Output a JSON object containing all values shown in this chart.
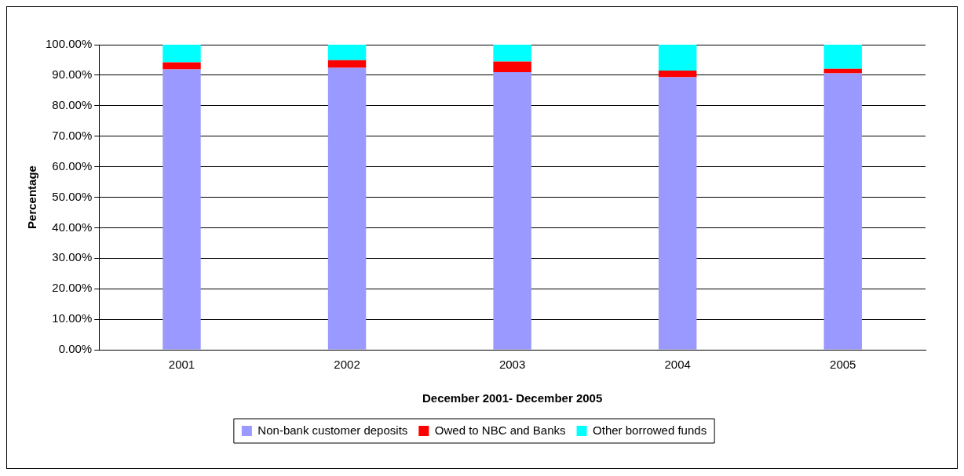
{
  "chart_data": {
    "type": "bar",
    "stacked": true,
    "xlabel": "December 2001- December 2005",
    "ylabel": "Percentage",
    "categories": [
      "2001",
      "2002",
      "2003",
      "2004",
      "2005"
    ],
    "series": [
      {
        "name": "Non-bank customer deposits",
        "color": "#9999ff",
        "values": [
          91.9,
          92.4,
          91.0,
          89.3,
          90.6
        ]
      },
      {
        "name": "Owed to NBC and Banks",
        "color": "#ff0000",
        "values": [
          2.3,
          2.5,
          3.5,
          2.2,
          1.5
        ]
      },
      {
        "name": "Other borrowed funds",
        "color": "#00ffff",
        "values": [
          5.8,
          5.1,
          5.5,
          8.5,
          7.9
        ]
      }
    ],
    "ylim": [
      0,
      100
    ],
    "yticks": [
      {
        "value": 0,
        "label": "0.00%"
      },
      {
        "value": 10,
        "label": "10.00%"
      },
      {
        "value": 20,
        "label": "20.00%"
      },
      {
        "value": 30,
        "label": "30.00%"
      },
      {
        "value": 40,
        "label": "40.00%"
      },
      {
        "value": 50,
        "label": "50.00%"
      },
      {
        "value": 60,
        "label": "60.00%"
      },
      {
        "value": 70,
        "label": "70.00%"
      },
      {
        "value": 80,
        "label": "80.00%"
      },
      {
        "value": 90,
        "label": "90.00%"
      },
      {
        "value": 100,
        "label": "100.00%"
      }
    ],
    "grid": "y",
    "legend": "bottom"
  }
}
